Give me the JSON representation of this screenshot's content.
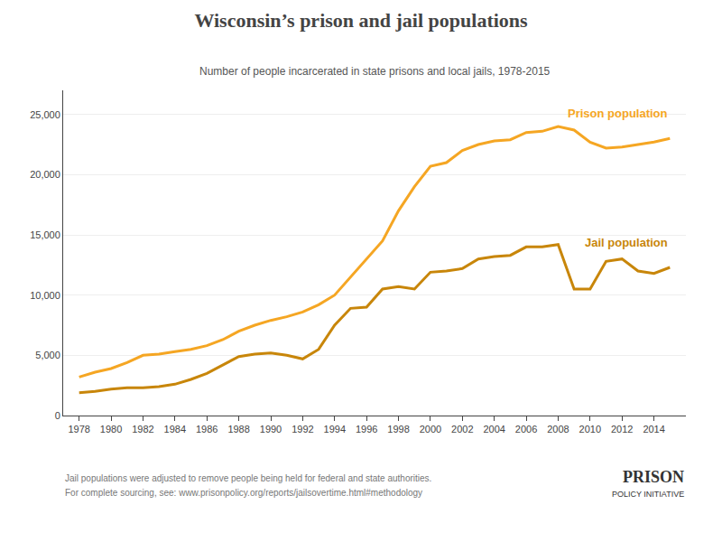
{
  "chart_data": {
    "type": "line",
    "title": "Wisconsin’s prison and jail populations",
    "subtitle": "Number of people incarcerated in state prisons and local jails, 1978-2015",
    "x": [
      1978,
      1979,
      1980,
      1981,
      1982,
      1983,
      1984,
      1985,
      1986,
      1987,
      1988,
      1989,
      1990,
      1991,
      1992,
      1993,
      1994,
      1995,
      1996,
      1997,
      1998,
      1999,
      2000,
      2001,
      2002,
      2003,
      2004,
      2005,
      2006,
      2007,
      2008,
      2009,
      2010,
      2011,
      2012,
      2013,
      2014,
      2015
    ],
    "series": [
      {
        "name": "Prison population",
        "color": "#f5a623",
        "values": [
          3200,
          3600,
          3900,
          4400,
          5000,
          5100,
          5300,
          5500,
          5800,
          6300,
          7000,
          7500,
          7900,
          8200,
          8600,
          9200,
          10000,
          11500,
          13000,
          14500,
          17000,
          19000,
          20700,
          21000,
          22000,
          22500,
          22800,
          22900,
          23500,
          23600,
          24000,
          23700,
          22700,
          22200,
          22300,
          22500,
          22700,
          23000
        ]
      },
      {
        "name": "Jail population",
        "color": "#c8860a",
        "values": [
          1900,
          2000,
          2200,
          2300,
          2300,
          2400,
          2600,
          3000,
          3500,
          4200,
          4900,
          5100,
          5200,
          5000,
          4700,
          5500,
          7500,
          8900,
          9000,
          10500,
          10700,
          10500,
          11900,
          12000,
          12200,
          13000,
          13200,
          13300,
          14000,
          14000,
          14200,
          10500,
          10500,
          12800,
          13000,
          12000,
          11800,
          12300
        ]
      }
    ],
    "xlim": [
      1977,
      2016
    ],
    "xticks": [
      1978,
      1980,
      1982,
      1984,
      1986,
      1988,
      1990,
      1992,
      1994,
      1996,
      1998,
      2000,
      2002,
      2004,
      2006,
      2008,
      2010,
      2012,
      2014
    ],
    "ylim": [
      0,
      27000
    ],
    "yticks": [
      0,
      {
        "value": 5000,
        "label": "5,000"
      },
      {
        "value": 10000,
        "label": "10,000"
      },
      {
        "value": 15000,
        "label": "15,000"
      },
      {
        "value": 20000,
        "label": "20,000"
      },
      {
        "value": 25000,
        "label": "25,000"
      }
    ],
    "grid": true,
    "annotations": [
      "Jail populations were adjusted to remove people being held for federal and state authorities.",
      "For complete sourcing, see: www.prisonpolicy.org/reports/jailsovertime.html#methodology",
      "PRISON",
      "POLICY INITIATIVE"
    ]
  }
}
